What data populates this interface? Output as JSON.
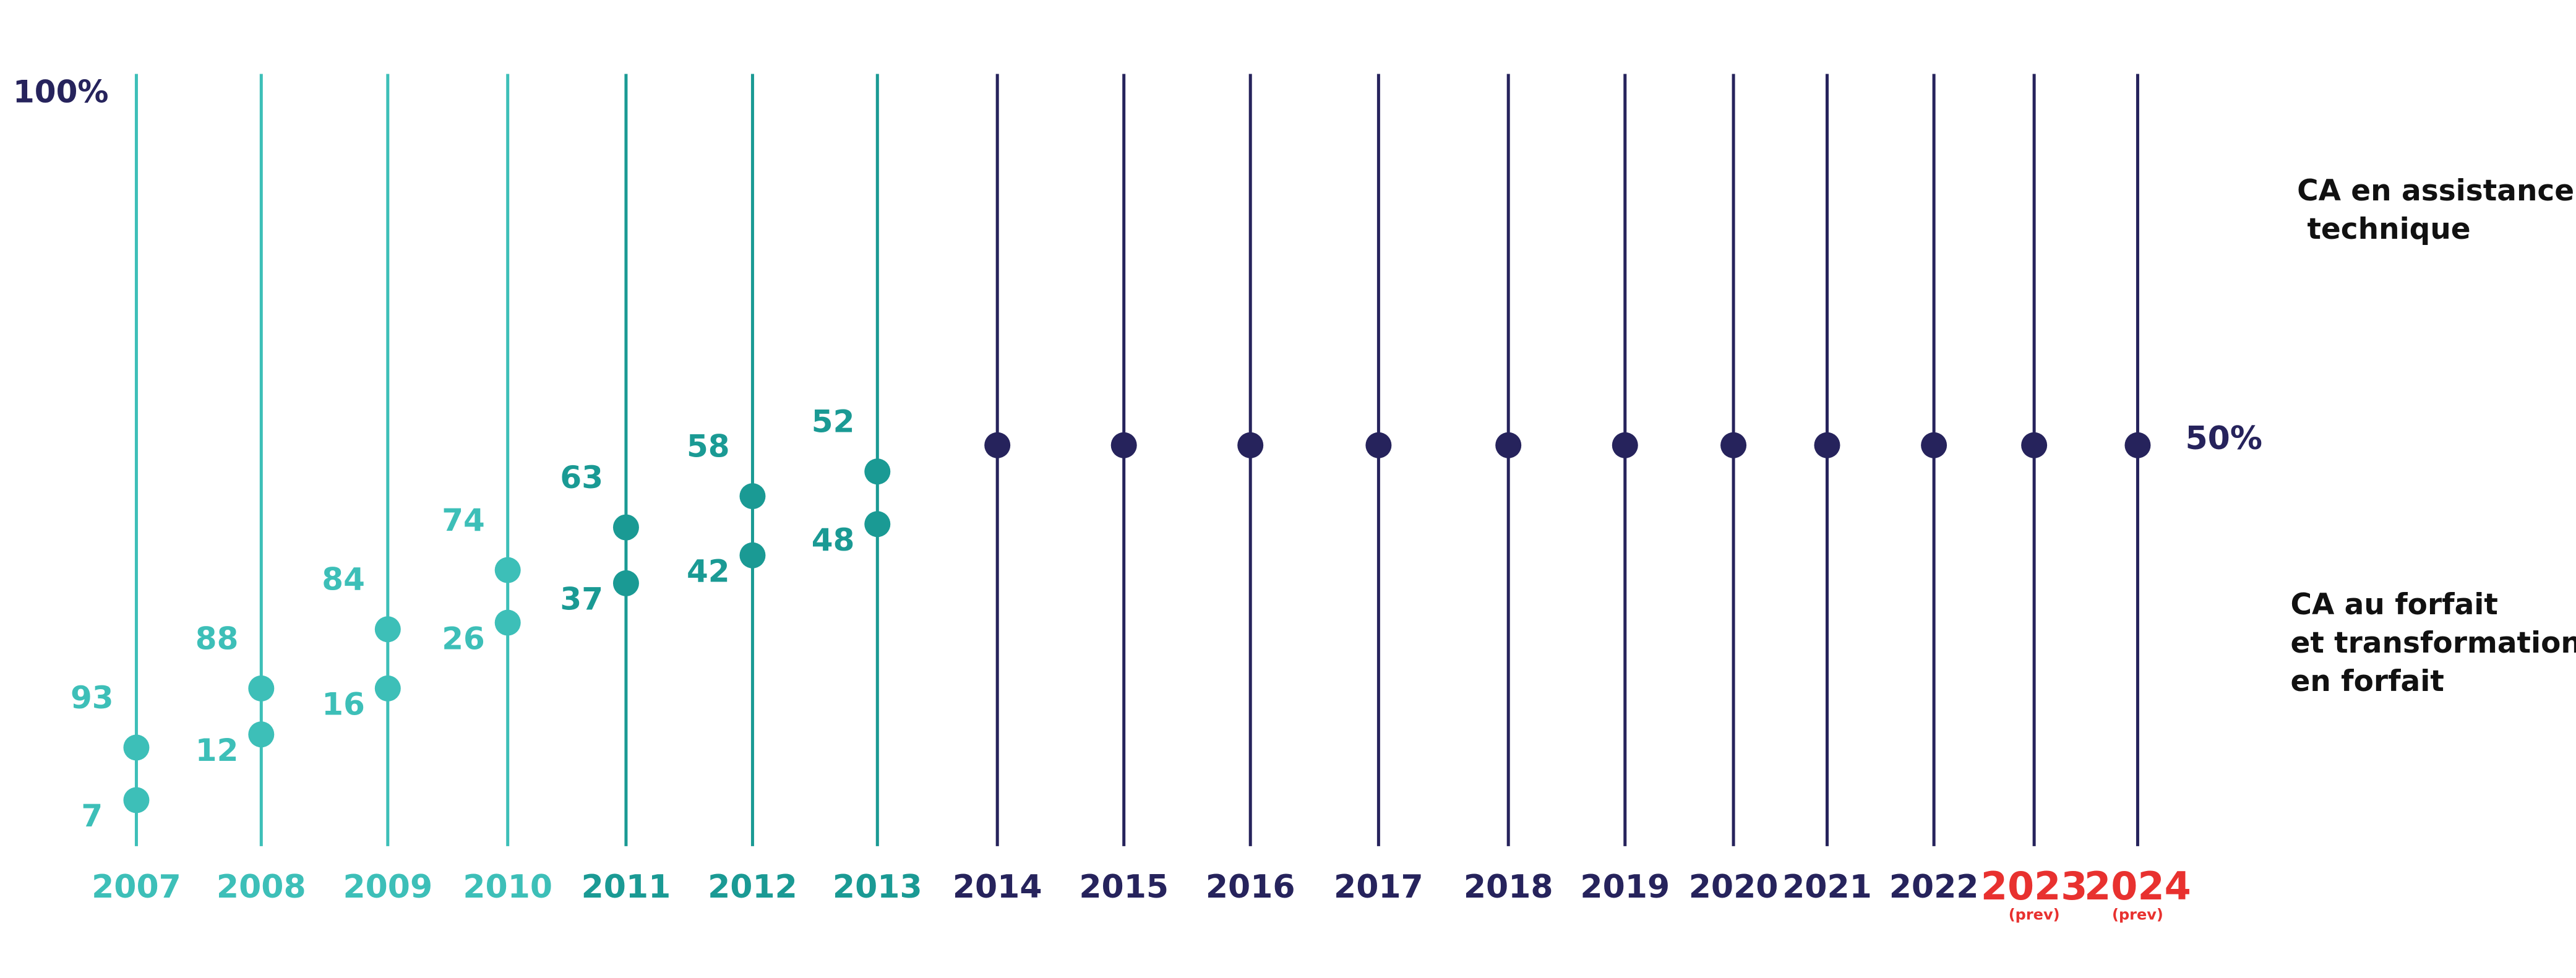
{
  "chart_data": {
    "type": "dot",
    "top_label": "100%",
    "categories": [
      "2007",
      "2008",
      "2009",
      "2010",
      "2011",
      "2012",
      "2013",
      "2014",
      "2015",
      "2016",
      "2017",
      "2018",
      "2019",
      "2020",
      "2021",
      "2022",
      "2023",
      "2024"
    ],
    "category_notes": [
      null,
      null,
      null,
      null,
      null,
      null,
      null,
      null,
      null,
      null,
      null,
      null,
      null,
      null,
      null,
      null,
      "(prev)",
      "(prev)"
    ],
    "category_colors": [
      "#3dbfb8",
      "#3dbfb8",
      "#3dbfb8",
      "#3dbfb8",
      "#1a9a94",
      "#1a9a94",
      "#1a9a94",
      "#26235c",
      "#26235c",
      "#26235c",
      "#26235c",
      "#26235c",
      "#26235c",
      "#26235c",
      "#26235c",
      "#26235c",
      "#26235c",
      "#26235c"
    ],
    "label_colors": [
      "#3dbfb8",
      "#3dbfb8",
      "#3dbfb8",
      "#3dbfb8",
      "#1a9a94",
      "#1a9a94",
      "#1a9a94",
      "#26235c",
      "#26235c",
      "#26235c",
      "#26235c",
      "#26235c",
      "#26235c",
      "#26235c",
      "#26235c",
      "#26235c",
      "#e8312f",
      "#e8312f"
    ],
    "series": [
      {
        "name": "CA en assistance\n technique",
        "values": [
          93,
          88,
          84,
          74,
          63,
          58,
          52,
          null,
          null,
          null,
          null,
          null,
          null,
          null,
          null,
          null,
          null,
          null
        ]
      },
      {
        "name": "CA au forfait\net transformation\nen forfait",
        "values": [
          7,
          12,
          16,
          26,
          37,
          42,
          48,
          null,
          null,
          null,
          null,
          null,
          null,
          null,
          null,
          null,
          null,
          null
        ]
      }
    ],
    "parity": {
      "label": "50%",
      "color": "#26235c",
      "values": [
        null,
        null,
        null,
        null,
        null,
        null,
        null,
        50,
        50,
        50,
        50,
        50,
        50,
        50,
        50,
        50,
        50,
        50
      ]
    }
  }
}
